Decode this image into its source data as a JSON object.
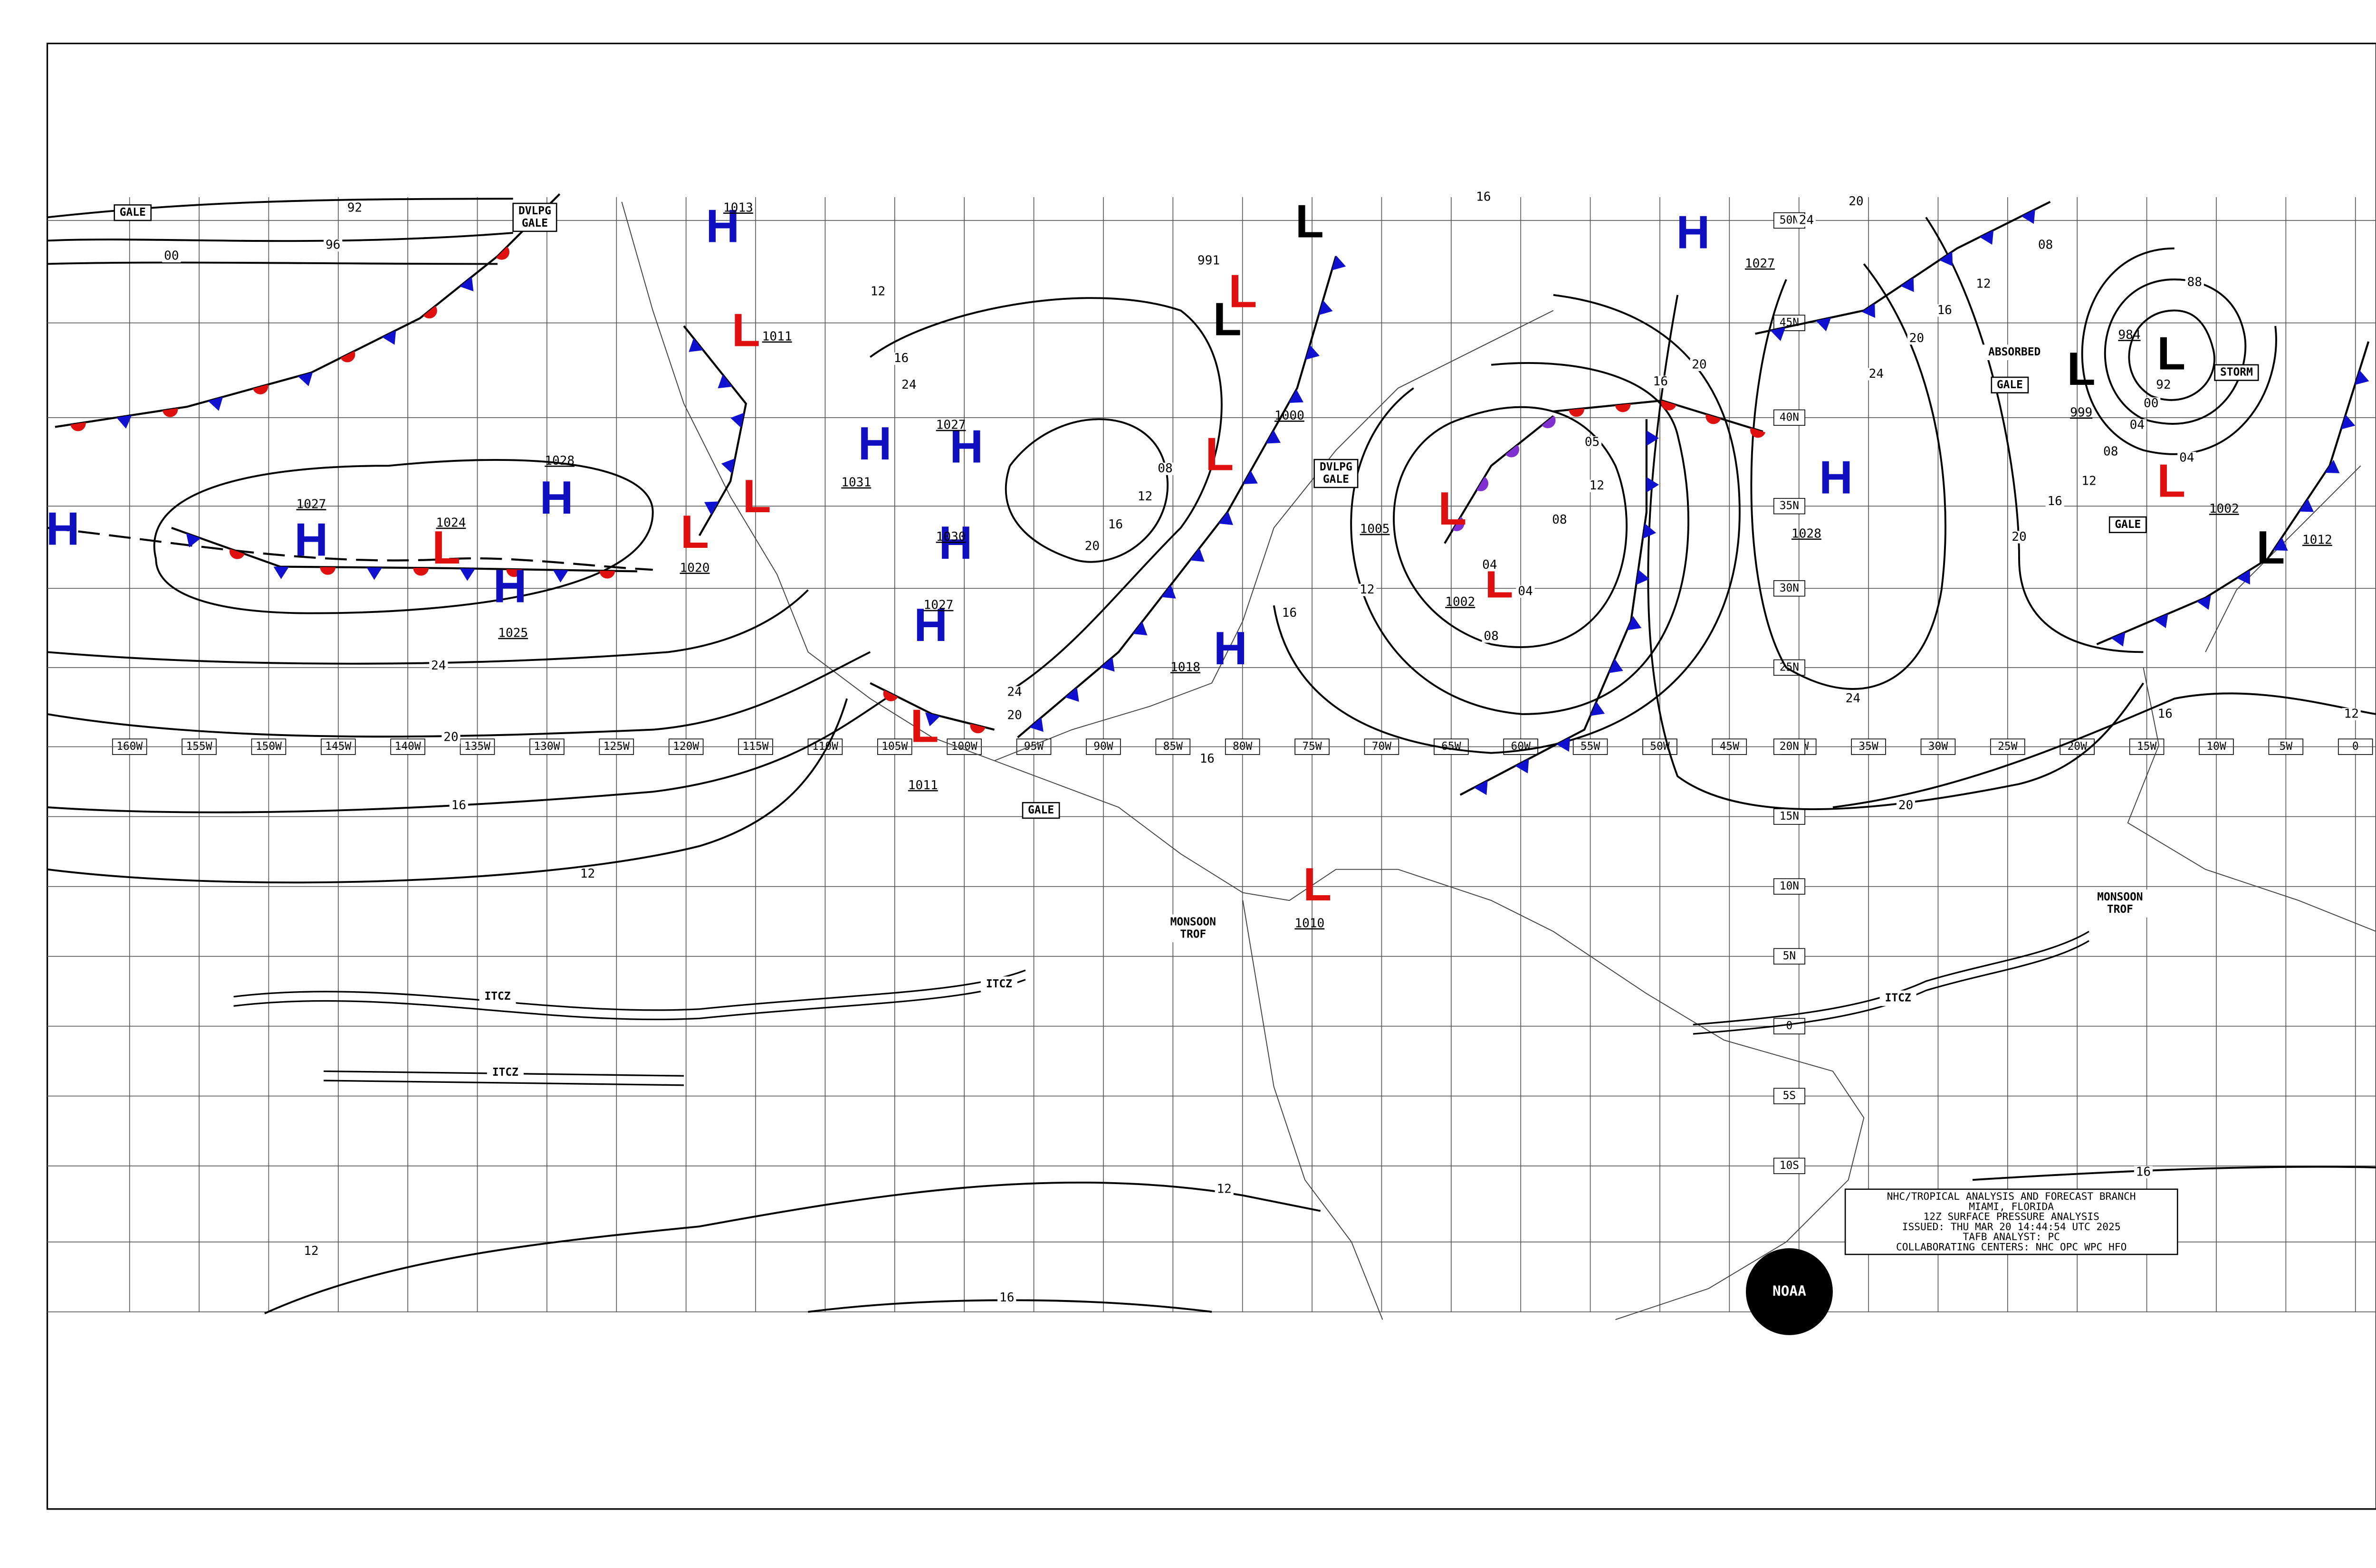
{
  "longitude_labels": [
    "160W",
    "155W",
    "150W",
    "145W",
    "140W",
    "135W",
    "130W",
    "125W",
    "120W",
    "115W",
    "110W",
    "105W",
    "100W",
    "95W",
    "90W",
    "85W",
    "80W",
    "75W",
    "70W",
    "65W",
    "60W",
    "55W",
    "50W",
    "45W",
    "40W",
    "35W",
    "30W",
    "25W",
    "20W",
    "15W",
    "10W",
    "5W",
    "0"
  ],
  "latitude_labels": [
    "50N",
    "45N",
    "40N",
    "35N",
    "30N",
    "25N",
    "20N",
    "15N",
    "10N",
    "5N",
    "0",
    "5S",
    "10S"
  ],
  "pressure_centers": [
    {
      "symbol": "H",
      "color": "#1010c0",
      "pressure": "1013"
    },
    {
      "symbol": "L",
      "color": "#e01010",
      "pressure": "1011"
    },
    {
      "symbol": "H",
      "color": "#1010c0",
      "pressure": "1031"
    },
    {
      "symbol": "H",
      "color": "#1010c0",
      "pressure": "1027"
    },
    {
      "symbol": "L",
      "color": "#e01010"
    },
    {
      "symbol": "L",
      "color": "#e01010",
      "pressure": "1020"
    },
    {
      "symbol": "H",
      "color": "#1010c0",
      "pressure": "1028"
    },
    {
      "symbol": "H",
      "color": "#1010c0",
      "pressure": "1027"
    },
    {
      "symbol": "L",
      "color": "#e01010",
      "pressure": "1024"
    },
    {
      "symbol": "H",
      "color": "#1010c0",
      "pressure": "1025"
    },
    {
      "symbol": "H",
      "color": "#1010c0"
    },
    {
      "symbol": "H",
      "color": "#1010c0",
      "pressure": "1030"
    },
    {
      "symbol": "H",
      "color": "#1010c0",
      "pressure": "1027"
    },
    {
      "symbol": "L",
      "color": "#e01010",
      "pressure": "1011"
    },
    {
      "symbol": "L",
      "color": "#000000"
    },
    {
      "symbol": "L",
      "color": "#e01010"
    },
    {
      "symbol": "L",
      "color": "#000000"
    },
    {
      "symbol": "L",
      "color": "#e01010",
      "pressure": "1000"
    },
    {
      "symbol": "H",
      "color": "#1010c0",
      "pressure": "1018"
    },
    {
      "symbol": "L",
      "color": "#e01010",
      "pressure": "1005"
    },
    {
      "symbol": "L",
      "color": "#e01010",
      "pressure": "1002"
    },
    {
      "symbol": "H",
      "color": "#1010c0",
      "pressure": "1027"
    },
    {
      "symbol": "H",
      "color": "#1010c0",
      "pressure": "1028"
    },
    {
      "symbol": "L",
      "color": "#000000",
      "pressure": "999"
    },
    {
      "symbol": "L",
      "color": "#000000",
      "pressure": "984"
    },
    {
      "symbol": "L",
      "color": "#e01010",
      "pressure": "1002"
    },
    {
      "symbol": "L",
      "color": "#000000",
      "pressure": "1012"
    },
    {
      "symbol": "L",
      "color": "#e01010",
      "pressure": "1010"
    }
  ],
  "isobar_labels": [
    "92",
    "96",
    "00",
    "24",
    "20",
    "16",
    "12",
    "12",
    "12",
    "16",
    "16",
    "20",
    "24",
    "16",
    "12",
    "16",
    "20",
    "12",
    "08",
    "04",
    "00",
    "88",
    "92",
    "04",
    "20",
    "24",
    "16",
    "12",
    "08",
    "20",
    "24",
    "20",
    "16",
    "12",
    "08",
    "05",
    "04",
    "04",
    "08",
    "12",
    "16",
    "16",
    "20",
    "24",
    "16",
    "991",
    "08",
    "12",
    "16",
    "20",
    "16",
    "12",
    "24"
  ],
  "annotations": [
    {
      "lines": [
        "GALE"
      ]
    },
    {
      "lines": [
        "DVLPG",
        "GALE"
      ]
    },
    {
      "lines": [
        "DVLPG",
        "GALE"
      ]
    },
    {
      "lines": [
        "ABSORBED"
      ]
    },
    {
      "lines": [
        "GALE"
      ]
    },
    {
      "lines": [
        "STORM"
      ]
    },
    {
      "lines": [
        "GALE"
      ]
    },
    {
      "lines": [
        "GALE"
      ]
    },
    {
      "lines": [
        "MONSOON",
        "TROF"
      ]
    },
    {
      "lines": [
        "MONSOON",
        "TROF"
      ]
    },
    {
      "lines": [
        "ITCZ"
      ]
    },
    {
      "lines": [
        "ITCZ"
      ]
    },
    {
      "lines": [
        "ITCZ"
      ]
    },
    {
      "lines": [
        "ITCZ"
      ]
    }
  ],
  "info_box": {
    "lines": [
      "NHC/TROPICAL ANALYSIS AND FORECAST BRANCH",
      "MIAMI, FLORIDA",
      "12Z SURFACE PRESSURE ANALYSIS",
      "ISSUED: THU MAR 20 14:44:54 UTC 2025",
      "TAFB ANALYST: PC",
      "COLLABORATING CENTERS: NHC OPC WPC HFO"
    ]
  },
  "logo": "NOAA"
}
